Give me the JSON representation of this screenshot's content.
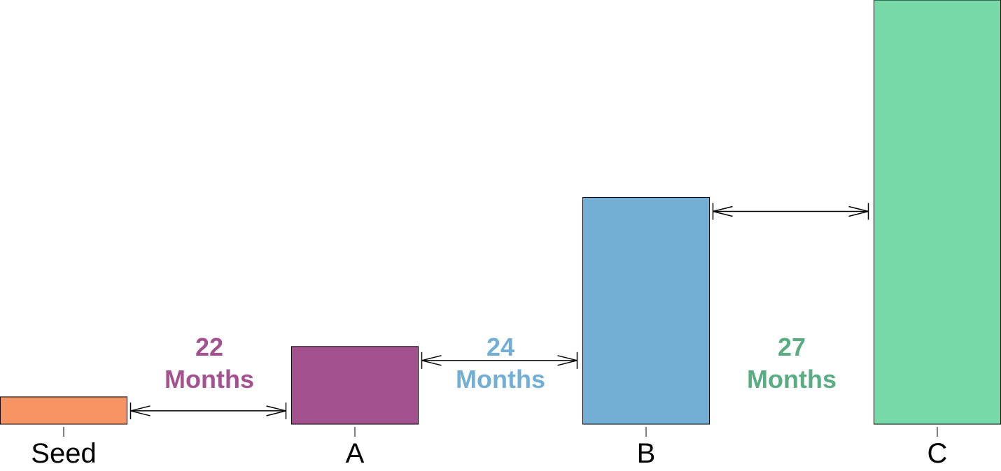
{
  "chart_data": {
    "type": "bar",
    "categories": [
      "Seed",
      "A",
      "B",
      "C"
    ],
    "values": [
      6.5,
      18.5,
      54,
      101
    ],
    "ylim": [
      0,
      101
    ],
    "colors": [
      "#f79463",
      "#a45190",
      "#73afd4",
      "#76d9a7"
    ],
    "grid": false,
    "annotations": [
      {
        "between": [
          "Seed",
          "A"
        ],
        "number": "22",
        "unit": "Months",
        "color": "#a45190"
      },
      {
        "between": [
          "A",
          "B"
        ],
        "number": "24",
        "unit": "Months",
        "color": "#73afd4"
      },
      {
        "between": [
          "B",
          "C"
        ],
        "number": "27",
        "unit": "Months",
        "color": "#5aac82"
      }
    ]
  }
}
